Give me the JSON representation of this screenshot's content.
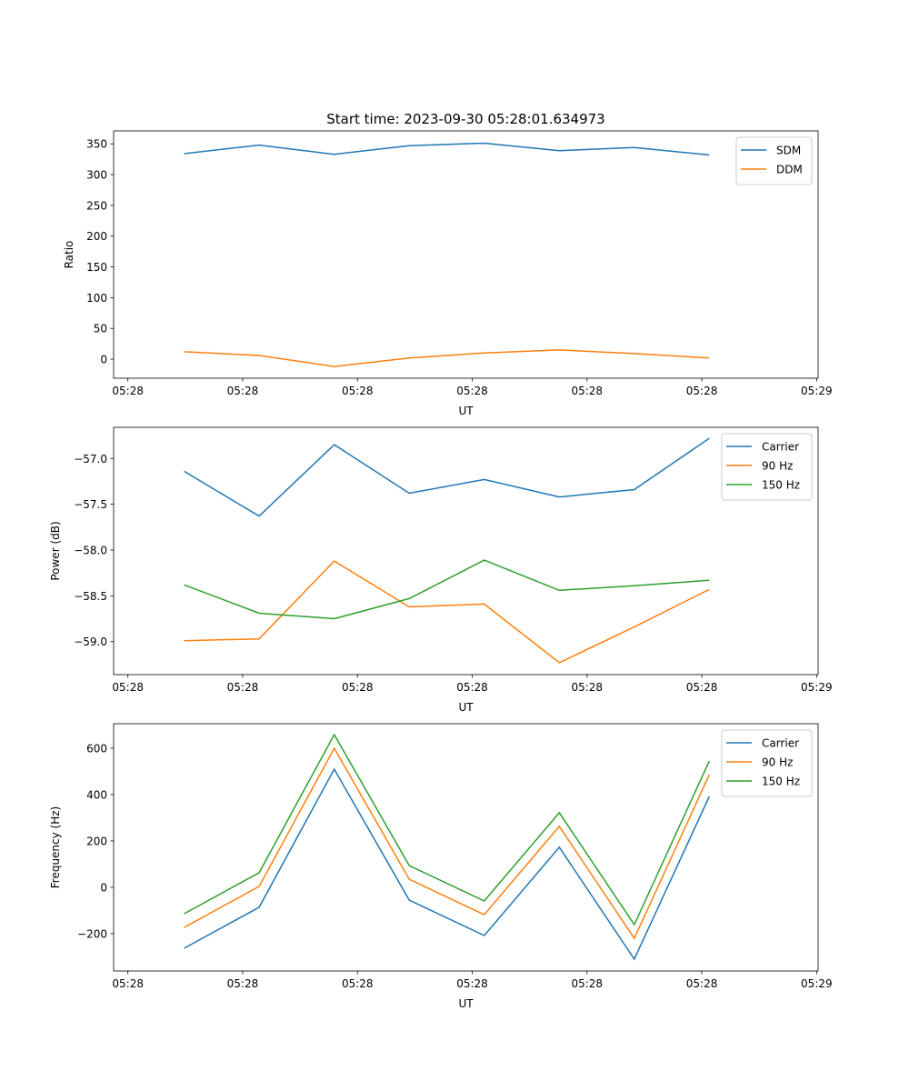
{
  "title": "Start time: 2023-09-30 05:28:01.634973",
  "chart_data": [
    {
      "type": "line",
      "title": "Start time: 2023-09-30 05:28:01.634973",
      "xlabel": "UT",
      "ylabel": "Ratio",
      "x": [
        0,
        1,
        2,
        3,
        4,
        5,
        6,
        7
      ],
      "xlim": [
        -0.94,
        8.45
      ],
      "xticks": [
        -0.75,
        0.78,
        2.31,
        3.84,
        5.37,
        6.9,
        8.43
      ],
      "xtick_labels": [
        "05:28",
        "05:28",
        "05:28",
        "05:28",
        "05:28",
        "05:28",
        "05:29"
      ],
      "ylim": [
        -31,
        371
      ],
      "yticks": [
        0,
        50,
        100,
        150,
        200,
        250,
        300,
        350
      ],
      "ytick_labels": [
        "0",
        "50",
        "100",
        "150",
        "200",
        "250",
        "300",
        "350"
      ],
      "legend_position": "top-right",
      "series": [
        {
          "name": "SDM",
          "color": "#1f77b4",
          "values": [
            334,
            348,
            333,
            347,
            351,
            339,
            344,
            332
          ]
        },
        {
          "name": "DDM",
          "color": "#ff7f0e",
          "values": [
            12,
            6,
            -12,
            2,
            10,
            15,
            9,
            2
          ]
        }
      ]
    },
    {
      "type": "line",
      "xlabel": "UT",
      "ylabel": "Power (dB)",
      "x": [
        0,
        1,
        2,
        3,
        4,
        5,
        6,
        7
      ],
      "xlim": [
        -0.94,
        8.45
      ],
      "xticks": [
        -0.75,
        0.78,
        2.31,
        3.84,
        5.37,
        6.9,
        8.43
      ],
      "xtick_labels": [
        "05:28",
        "05:28",
        "05:28",
        "05:28",
        "05:28",
        "05:28",
        "05:29"
      ],
      "ylim": [
        -59.36,
        -56.66
      ],
      "yticks": [
        -59.0,
        -58.5,
        -58.0,
        -57.5,
        -57.0
      ],
      "ytick_labels": [
        "−59.0",
        "−58.5",
        "−58.0",
        "−57.5",
        "−57.0"
      ],
      "legend_position": "top-right",
      "series": [
        {
          "name": "Carrier",
          "color": "#1f77b4",
          "values": [
            -57.14,
            -57.63,
            -56.85,
            -57.38,
            -57.23,
            -57.42,
            -57.34,
            -56.78
          ]
        },
        {
          "name": "90 Hz",
          "color": "#ff7f0e",
          "values": [
            -58.99,
            -58.97,
            -58.12,
            -58.62,
            -58.59,
            -59.23,
            -58.84,
            -58.43
          ]
        },
        {
          "name": "150 Hz",
          "color": "#2ca02c",
          "values": [
            -58.38,
            -58.69,
            -58.75,
            -58.53,
            -58.11,
            -58.44,
            -58.39,
            -58.33
          ]
        }
      ]
    },
    {
      "type": "line",
      "xlabel": "UT",
      "ylabel": "Frequency (Hz)",
      "x": [
        0,
        1,
        2,
        3,
        4,
        5,
        6,
        7
      ],
      "xlim": [
        -0.94,
        8.45
      ],
      "xticks": [
        -0.75,
        0.78,
        2.31,
        3.84,
        5.37,
        6.9,
        8.43
      ],
      "xtick_labels": [
        "05:28",
        "05:28",
        "05:28",
        "05:28",
        "05:28",
        "05:28",
        "05:29"
      ],
      "ylim": [
        -361,
        706
      ],
      "yticks": [
        -200,
        0,
        200,
        400,
        600
      ],
      "ytick_labels": [
        "−200",
        "0",
        "200",
        "400",
        "600"
      ],
      "legend_position": "top-right",
      "series": [
        {
          "name": "Carrier",
          "color": "#1f77b4",
          "values": [
            -263,
            -86,
            510,
            -55,
            -208,
            173,
            -310,
            392
          ]
        },
        {
          "name": "90 Hz",
          "color": "#ff7f0e",
          "values": [
            -173,
            4,
            600,
            35,
            -118,
            263,
            -220,
            486
          ]
        },
        {
          "name": "150 Hz",
          "color": "#2ca02c",
          "values": [
            -114,
            63,
            659,
            94,
            -59,
            322,
            -161,
            545
          ]
        }
      ]
    }
  ]
}
